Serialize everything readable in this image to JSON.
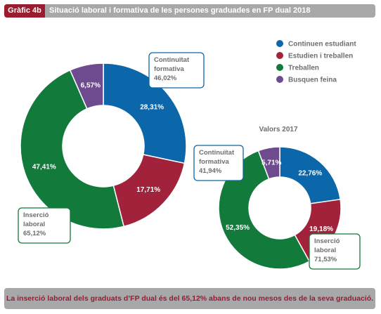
{
  "header": {
    "tag": "Gràfic 4b",
    "title": "Situació laboral i formativa de les persones graduades en FP dual 2018"
  },
  "colors": {
    "blue": "#0b67a9",
    "red": "#a3223b",
    "green": "#127a3a",
    "purple": "#6e4a8f",
    "header_bg": "#a7a8aa",
    "tag_bg": "#9b1b30"
  },
  "chart_data": [
    {
      "type": "pie",
      "title": "",
      "labels": [
        "Continuen estudiant",
        "Estudien i treballen",
        "Treballen",
        "Busquen feina"
      ],
      "values": [
        28.31,
        17.71,
        47.41,
        6.57
      ],
      "value_labels": [
        "28,31%",
        "17,71%",
        "47,41%",
        "6,57%"
      ],
      "callouts": [
        {
          "lines": [
            "Continuïtat",
            "formativa",
            "46,02%"
          ]
        },
        {
          "lines": [
            "Inserció",
            "laboral",
            "65,12%"
          ]
        }
      ]
    },
    {
      "type": "pie",
      "title": "Valors 2017",
      "labels": [
        "Continuen estudiant",
        "Estudien i treballen",
        "Treballen",
        "Busquen feina"
      ],
      "values": [
        22.76,
        19.18,
        52.35,
        5.71
      ],
      "value_labels": [
        "22,76%",
        "19,18%",
        "52,35%",
        "5,71%"
      ],
      "callouts": [
        {
          "lines": [
            "Continuïtat",
            "formativa",
            "41,94%"
          ]
        },
        {
          "lines": [
            "Inserció",
            "laboral",
            "71,53%"
          ]
        }
      ]
    }
  ],
  "legend": {
    "placement": "top-right",
    "items": [
      {
        "label": "Continuen estudiant",
        "color": "#0b67a9"
      },
      {
        "label": "Estudien i treballen",
        "color": "#a3223b"
      },
      {
        "label": "Treballen",
        "color": "#127a3a"
      },
      {
        "label": "Busquen feina",
        "color": "#6e4a8f"
      }
    ]
  },
  "footer": {
    "text": "La inserció laboral dels graduats d’FP dual és del 65,12% abans de nou mesos des de la seva graduació."
  }
}
